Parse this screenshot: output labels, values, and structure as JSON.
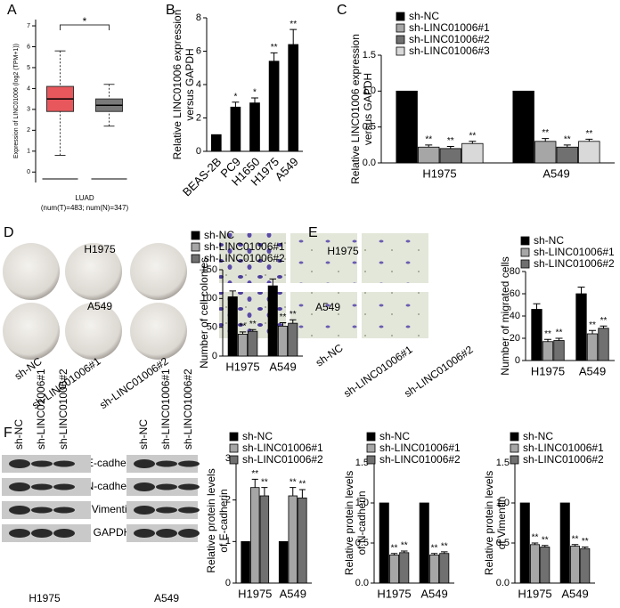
{
  "chart_data": [
    {
      "type": "box",
      "panel": "A",
      "ylabel": "Expression of LINC01006 (log2 (TPM+1))",
      "xlabel": "LUAD",
      "xnote": "(num(T)=483; num(N)=347)",
      "significance": "*",
      "significance_color": "#e0303a",
      "boxes": [
        {
          "color": "#e8575c",
          "low": 0.8,
          "q1": 2.9,
          "median": 3.5,
          "q3": 4.1,
          "high": 5.8
        },
        {
          "color": "#7a7a7a",
          "low": 2.2,
          "q1": 2.9,
          "median": 3.2,
          "q3": 3.5,
          "high": 4.2
        }
      ],
      "ylim": [
        -0.5,
        7.3
      ],
      "yticks": [
        0,
        1,
        2,
        3,
        4,
        5,
        6,
        7
      ]
    },
    {
      "type": "bar",
      "panel": "B",
      "ylabel": [
        "Relative LINC01006 expression",
        "versus GAPDH"
      ],
      "categories": [
        "BEAS-2B",
        "PC9",
        "H1650",
        "H1975",
        "A549"
      ],
      "values": [
        1,
        2.65,
        2.9,
        5.4,
        6.4
      ],
      "errors": [
        0,
        0.3,
        0.3,
        0.5,
        0.9
      ],
      "annotations": [
        null,
        "*",
        "*",
        "**",
        "**"
      ],
      "color": "#000000",
      "ylim": [
        0,
        8
      ],
      "yticks": [
        0,
        2,
        4,
        6,
        8
      ]
    },
    {
      "type": "bar",
      "panel": "C",
      "ylabel": [
        "Relative LINC01006 expression",
        "versus GAPDH"
      ],
      "categories": [
        "H1975",
        "A549"
      ],
      "series": [
        {
          "name": "sh-NC",
          "color": "#000000",
          "values": [
            1,
            1
          ],
          "errors": [
            0,
            0
          ],
          "annotations": [
            null,
            null
          ]
        },
        {
          "name": "sh-LINC01006#1",
          "color": "#a6a6a6",
          "values": [
            0.22,
            0.3
          ],
          "errors": [
            0.03,
            0.04
          ],
          "annotations": [
            "**",
            "**"
          ]
        },
        {
          "name": "sh-LINC01006#2",
          "color": "#707070",
          "values": [
            0.2,
            0.22
          ],
          "errors": [
            0.03,
            0.03
          ],
          "annotations": [
            "**",
            "**"
          ]
        },
        {
          "name": "sh-LINC01006#3",
          "color": "#d9d9d9",
          "values": [
            0.27,
            0.3
          ],
          "errors": [
            0.03,
            0.03
          ],
          "annotations": [
            "**",
            "**"
          ]
        }
      ],
      "ylim": [
        0,
        1.5
      ],
      "yticks": [
        {
          "value": 0,
          "label": "0.0"
        },
        {
          "value": 0.5,
          "label": "0.5"
        },
        {
          "value": 1,
          "label": "1.0"
        },
        {
          "value": 1.5,
          "label": "1.5"
        }
      ]
    },
    {
      "type": "bar",
      "panel": "D",
      "ylabel": [
        "Number of cell colonies"
      ],
      "categories": [
        "H1975",
        "A549"
      ],
      "series": [
        {
          "name": "sh-NC",
          "color": "#000000",
          "values": [
            103,
            122
          ],
          "errors": [
            10,
            12
          ],
          "annotations": [
            null,
            null
          ]
        },
        {
          "name": "sh-LINC01006#1",
          "color": "#a6a6a6",
          "values": [
            38,
            52
          ],
          "errors": [
            4,
            6
          ],
          "annotations": [
            "**",
            "**"
          ]
        },
        {
          "name": "sh-LINC01006#2",
          "color": "#707070",
          "values": [
            43,
            57
          ],
          "errors": [
            3,
            6
          ],
          "annotations": [
            "**",
            "**"
          ]
        }
      ],
      "ylim": [
        0,
        150
      ],
      "yticks": [
        0,
        50,
        100,
        150
      ]
    },
    {
      "type": "bar",
      "panel": "E",
      "ylabel": [
        "Number of migrated cells"
      ],
      "categories": [
        "H1975",
        "A549"
      ],
      "series": [
        {
          "name": "sh-NC",
          "color": "#000000",
          "values": [
            46,
            60
          ],
          "errors": [
            5,
            6
          ],
          "annotations": [
            null,
            null
          ]
        },
        {
          "name": "sh-LINC01006#1",
          "color": "#a6a6a6",
          "values": [
            17,
            24
          ],
          "errors": [
            2,
            3
          ],
          "annotations": [
            "**",
            "**"
          ]
        },
        {
          "name": "sh-LINC01006#2",
          "color": "#707070",
          "values": [
            18,
            29
          ],
          "errors": [
            2,
            2
          ],
          "annotations": [
            "**",
            "**"
          ]
        }
      ],
      "ylim": [
        0,
        80
      ],
      "yticks": [
        0,
        20,
        40,
        60,
        80
      ]
    },
    {
      "type": "bar",
      "panel": "F",
      "ylabel": [
        "Relative protein levels",
        "of E-cadherin"
      ],
      "categories": [
        "H1975",
        "A549"
      ],
      "series": [
        {
          "name": "sh-NC",
          "color": "#000000",
          "values": [
            1,
            1
          ],
          "errors": [
            0,
            0
          ],
          "annotations": [
            null,
            null
          ]
        },
        {
          "name": "sh-LINC01006#1",
          "color": "#a6a6a6",
          "values": [
            2.3,
            2.1
          ],
          "errors": [
            0.2,
            0.2
          ],
          "annotations": [
            "**",
            "**"
          ]
        },
        {
          "name": "sh-LINC01006#2",
          "color": "#707070",
          "values": [
            2.1,
            2.05
          ],
          "errors": [
            0.2,
            0.2
          ],
          "annotations": [
            "**",
            "**"
          ]
        }
      ],
      "ylim": [
        0,
        3
      ],
      "yticks": [
        0,
        1,
        2,
        3
      ]
    },
    {
      "type": "bar",
      "ylabel": [
        "Relative protein levels",
        "of N-cadherin"
      ],
      "categories": [
        "H1975",
        "A549"
      ],
      "series": [
        {
          "name": "sh-NC",
          "color": "#000000",
          "values": [
            1,
            1
          ],
          "errors": [
            0,
            0
          ],
          "annotations": [
            null,
            null
          ]
        },
        {
          "name": "sh-LINC01006#1",
          "color": "#a6a6a6",
          "values": [
            0.35,
            0.35
          ],
          "errors": [
            0.02,
            0.02
          ],
          "annotations": [
            "**",
            "**"
          ]
        },
        {
          "name": "sh-LINC01006#2",
          "color": "#707070",
          "values": [
            0.38,
            0.37
          ],
          "errors": [
            0.02,
            0.02
          ],
          "annotations": [
            "**",
            "**"
          ]
        }
      ],
      "ylim": [
        0,
        1.5
      ],
      "yticks": [
        {
          "value": 0,
          "label": "0.0"
        },
        {
          "value": 0.5,
          "label": "0.5"
        },
        {
          "value": 1,
          "label": "1.0"
        },
        {
          "value": 1.5,
          "label": "1.5"
        }
      ]
    },
    {
      "type": "bar",
      "ylabel": [
        "Relative protein levels",
        "of Vimentin"
      ],
      "categories": [
        "H1975",
        "A549"
      ],
      "series": [
        {
          "name": "sh-NC",
          "color": "#000000",
          "values": [
            1,
            1
          ],
          "errors": [
            0,
            0
          ],
          "annotations": [
            null,
            null
          ]
        },
        {
          "name": "sh-LINC01006#1",
          "color": "#a6a6a6",
          "values": [
            0.48,
            0.46
          ],
          "errors": [
            0.02,
            0.02
          ],
          "annotations": [
            "**",
            "**"
          ]
        },
        {
          "name": "sh-LINC01006#2",
          "color": "#707070",
          "values": [
            0.45,
            0.43
          ],
          "errors": [
            0.02,
            0.02
          ],
          "annotations": [
            "**",
            "**"
          ]
        }
      ],
      "ylim": [
        0,
        1.5
      ],
      "yticks": [
        {
          "value": 0,
          "label": "0.0"
        },
        {
          "value": 0.5,
          "label": "0.5"
        },
        {
          "value": 1,
          "label": "1.0"
        },
        {
          "value": 1.5,
          "label": "1.5"
        }
      ]
    }
  ],
  "figures": {
    "colony": {
      "top": "H1975",
      "middle": "A549",
      "groups": [
        "sh-NC",
        "sh-LINC01006#1",
        "sh-LINC01006#2"
      ]
    },
    "migration": {
      "top": "H1975",
      "middle": "A549",
      "groups": [
        "sh-NC",
        "sh-LINC01006#1",
        "sh-LINC01006#2"
      ]
    },
    "blot": {
      "lanes": [
        "sh-NC",
        "sh-LINC01006#1",
        "sh-LINC01006#2"
      ],
      "proteins": [
        "E-cadherin",
        "N-cadherin",
        "Vimentin",
        "GAPDH"
      ],
      "cells": [
        "H1975",
        "A549"
      ]
    }
  }
}
